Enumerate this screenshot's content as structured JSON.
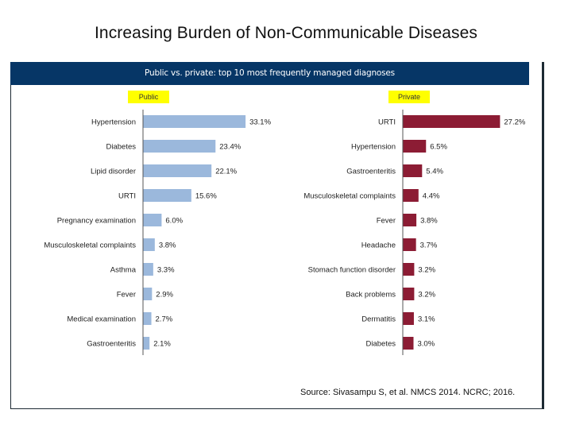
{
  "slide": {
    "title": "Increasing Burden of Non-Communicable Diseases",
    "source": "Source: Sivasampu S, et al. NMCS 2014. NCRC; 2016."
  },
  "chart_data": {
    "type": "bar",
    "orientation": "horizontal",
    "title": "Public vs. private: top 10 most frequently managed diagnoses",
    "value_format": "percent_1dp",
    "panels": [
      {
        "name": "Public",
        "color": "#9bb8dc",
        "categories": [
          "Hypertension",
          "Diabetes",
          "Lipid disorder",
          "URTI",
          "Pregnancy examination",
          "Musculoskeletal complaints",
          "Asthma",
          "Fever",
          "Medical examination",
          "Gastroenteritis"
        ],
        "values": [
          33.1,
          23.4,
          22.1,
          15.6,
          6.0,
          3.8,
          3.3,
          2.9,
          2.7,
          2.1
        ],
        "labels": [
          "33.1%",
          "23.4%",
          "22.1%",
          "15.6%",
          "6.0%",
          "3.8%",
          "3.3%",
          "2.9%",
          "2.7%",
          "2.1%"
        ],
        "xlim": [
          0,
          40
        ]
      },
      {
        "name": "Private",
        "color": "#8c1c34",
        "categories": [
          "URTI",
          "Hypertension",
          "Gastroenteritis",
          "Musculoskeletal complaints",
          "Fever",
          "Headache",
          "Stomach function disorder",
          "Back problems",
          "Dermatitis",
          "Diabetes"
        ],
        "values": [
          27.2,
          6.5,
          5.4,
          4.4,
          3.8,
          3.7,
          3.2,
          3.2,
          3.1,
          3.0
        ],
        "labels": [
          "27.2%",
          "6.5%",
          "5.4%",
          "4.4%",
          "3.8%",
          "3.7%",
          "3.2%",
          "3.2%",
          "3.1%",
          "3.0%"
        ],
        "xlim": [
          0,
          40
        ]
      }
    ],
    "xlabel": "",
    "ylabel": "",
    "grid": false,
    "legend": "none"
  },
  "colors": {
    "header_bg": "#063666",
    "label_highlight": "#ffff00",
    "axis": "#555555"
  }
}
